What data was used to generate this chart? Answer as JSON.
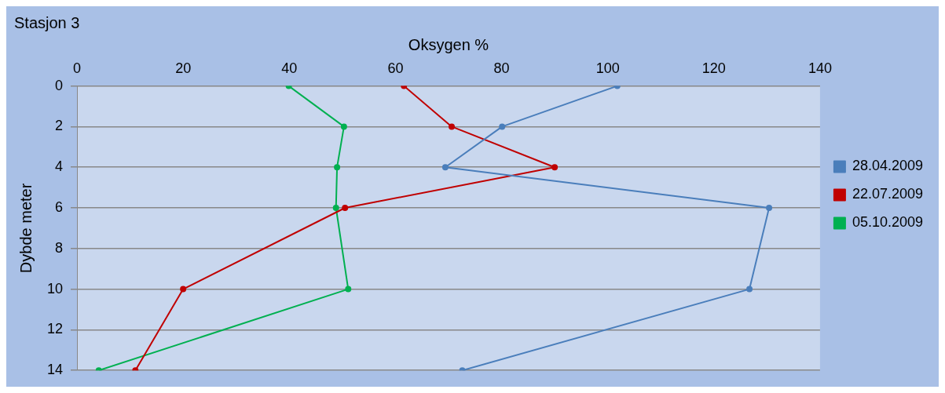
{
  "chart_data": {
    "type": "line",
    "title": "Stasjon 3",
    "xlabel": "Oksygen %",
    "ylabel": "Dybde meter",
    "xlim": [
      0,
      140
    ],
    "xticks": [
      0,
      20,
      40,
      60,
      80,
      100,
      120,
      140
    ],
    "ylim": [
      14,
      0
    ],
    "yticks": [
      0,
      2,
      4,
      6,
      8,
      10,
      12,
      14
    ],
    "grid": "y",
    "legend": "right",
    "marker": "circle",
    "line_style": "solid",
    "series": [
      {
        "name": "28.04.2009",
        "color": "#4a7ebb",
        "x": [
          101.8,
          80.1,
          69.4,
          130.4,
          126.7,
          72.6
        ],
        "values": [
          0,
          2,
          4,
          6,
          10,
          14
        ]
      },
      {
        "name": "22.07.2009",
        "color": "#c00000",
        "x": [
          61.6,
          70.6,
          90.0,
          50.5,
          20.0,
          11.0
        ],
        "values": [
          0,
          2,
          4,
          6,
          10,
          14
        ]
      },
      {
        "name": "05.10.2009",
        "color": "#00b050",
        "x": [
          39.9,
          50.3,
          49.0,
          48.8,
          51.1,
          4.1
        ],
        "values": [
          0,
          2,
          4,
          6,
          10,
          14
        ]
      }
    ]
  }
}
